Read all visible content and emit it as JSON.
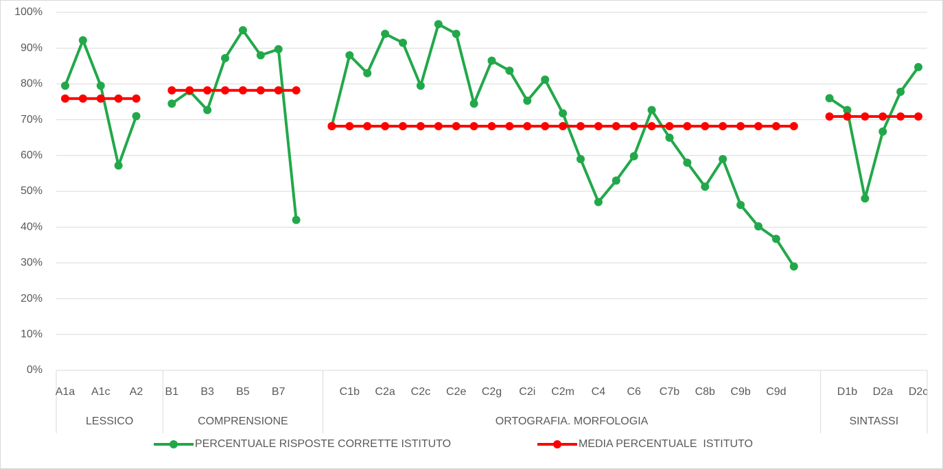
{
  "chart_data": {
    "type": "line",
    "groups": [
      {
        "name": "LESSICO",
        "categories": [
          "A1a",
          null,
          "A1c",
          null,
          "A2",
          null
        ]
      },
      {
        "name": "COMPRENSIONE",
        "categories": [
          "B1",
          null,
          "B3",
          null,
          "B5",
          null,
          "B7",
          null,
          null
        ]
      },
      {
        "name": "ORTOGRAFIA. MORFOLOGIA",
        "categories": [
          null,
          "C1b",
          null,
          "C2a",
          null,
          "C2c",
          null,
          "C2e",
          null,
          "C2g",
          null,
          "C2i",
          null,
          "C2m",
          null,
          "C4",
          null,
          "C6",
          null,
          "C7b",
          null,
          "C8b",
          null,
          "C9b",
          null,
          "C9d",
          null,
          null
        ]
      },
      {
        "name": "SINTASSI",
        "categories": [
          null,
          "D1b",
          null,
          "D2a",
          null,
          "D2c"
        ]
      }
    ],
    "series": [
      {
        "name": "PERCENTUALE RISPOSTE CORRETTE ISTITUTO",
        "color": "#22a84a",
        "values": [
          79.5,
          92.2,
          79.5,
          57.2,
          71,
          null,
          74.5,
          78,
          72.7,
          87.2,
          95,
          88,
          89.7,
          42,
          null,
          68.2,
          88,
          83,
          94,
          91.5,
          79.5,
          96.7,
          94,
          74.5,
          86.5,
          83.7,
          75.3,
          81.2,
          71.8,
          59,
          47,
          53,
          59.8,
          72.7,
          65,
          58,
          51.3,
          59,
          46.2,
          40.2,
          36.7,
          29,
          null,
          76,
          72.7,
          48,
          66.7,
          77.8,
          84.7
        ]
      },
      {
        "name": "MEDIA PERCENTUALE  ISTITUTO",
        "color": "#ff0000",
        "values": [
          75.9,
          75.9,
          75.9,
          75.9,
          75.9,
          null,
          78.2,
          78.2,
          78.2,
          78.2,
          78.2,
          78.2,
          78.2,
          78.2,
          null,
          68.2,
          68.2,
          68.2,
          68.2,
          68.2,
          68.2,
          68.2,
          68.2,
          68.2,
          68.2,
          68.2,
          68.2,
          68.2,
          68.2,
          68.2,
          68.2,
          68.2,
          68.2,
          68.2,
          68.2,
          68.2,
          68.2,
          68.2,
          68.2,
          68.2,
          68.2,
          68.2,
          null,
          70.9,
          70.9,
          70.9,
          70.9,
          70.9,
          70.9
        ]
      }
    ],
    "ylim": [
      0,
      100
    ],
    "yticks": [
      {
        "value": 0,
        "label": "0%"
      },
      {
        "value": 10,
        "label": "10%"
      },
      {
        "value": 20,
        "label": "20%"
      },
      {
        "value": 30,
        "label": "30%"
      },
      {
        "value": 40,
        "label": "40%"
      },
      {
        "value": 50,
        "label": "50%"
      },
      {
        "value": 60,
        "label": "60%"
      },
      {
        "value": 70,
        "label": "70%"
      },
      {
        "value": 80,
        "label": "80%"
      },
      {
        "value": 90,
        "label": "90%"
      },
      {
        "value": 100,
        "label": "100%"
      }
    ],
    "grid": true,
    "legend": "bottom"
  }
}
